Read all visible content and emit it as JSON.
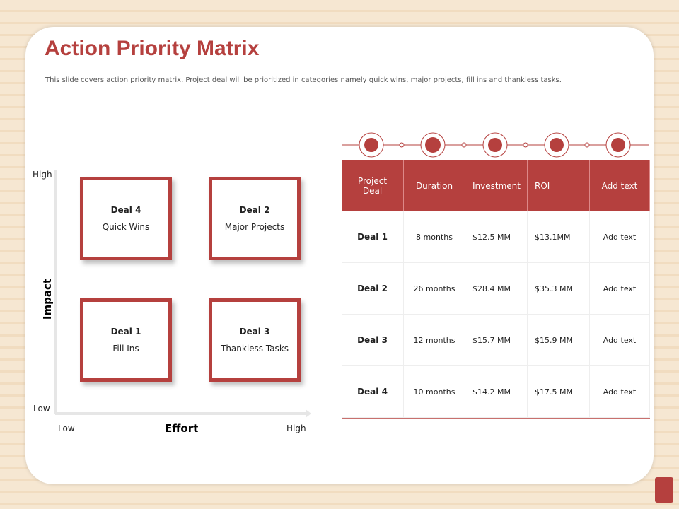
{
  "header": {
    "title": "Action Priority Matrix",
    "description": "This slide covers action priority matrix. Project deal will be prioritized in categories namely quick wins, major projects, fill ins and thankless tasks."
  },
  "matrix": {
    "y_axis": {
      "label": "Impact",
      "high": "High",
      "low": "Low"
    },
    "x_axis": {
      "label": "Effort",
      "low": "Low",
      "high": "High"
    },
    "quadrants": [
      {
        "deal": "Deal 4",
        "label": "Quick Wins"
      },
      {
        "deal": "Deal 2",
        "label": "Major Projects"
      },
      {
        "deal": "Deal 1",
        "label": "Fill Ins"
      },
      {
        "deal": "Deal 3",
        "label": "Thankless Tasks"
      }
    ]
  },
  "table": {
    "columns": [
      "Project Deal",
      "Duration",
      "Investment",
      "ROI",
      "Add text"
    ],
    "rows": [
      [
        "Deal 1",
        "8 months",
        "$12.5 MM",
        "$13.1MM",
        "Add text"
      ],
      [
        "Deal 2",
        "26 months",
        "$28.4 MM",
        "$35.3 MM",
        "Add text"
      ],
      [
        "Deal 3",
        "12 months",
        "$15.7 MM",
        "$15.9 MM",
        "Add text"
      ],
      [
        "Deal 4",
        "10 months",
        "$14.2 MM",
        "$17.5 MM",
        "Add text"
      ]
    ]
  }
}
